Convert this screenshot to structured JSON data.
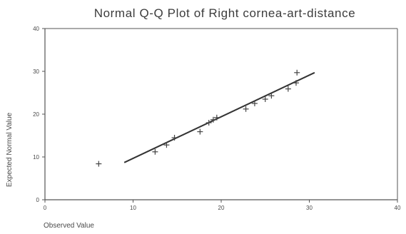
{
  "chart_data": {
    "type": "scatter",
    "title": "Normal Q-Q Plot of Right cornea-art-distance",
    "xlabel": "Observed Value",
    "ylabel": "Expected Normal Value",
    "xlim": [
      0,
      40
    ],
    "ylim": [
      0,
      40
    ],
    "xticks": [
      0,
      10,
      20,
      30,
      40
    ],
    "yticks": [
      0,
      10,
      20,
      30,
      40
    ],
    "grid": false,
    "points": {
      "marker": "+",
      "x": [
        6.1,
        12.5,
        13.8,
        14.7,
        17.6,
        18.6,
        19.1,
        19.5,
        22.8,
        23.8,
        25.0,
        25.7,
        27.6,
        28.5,
        28.6
      ],
      "y": [
        8.4,
        11.2,
        12.8,
        14.5,
        15.9,
        18.0,
        18.7,
        19.2,
        21.2,
        22.5,
        23.5,
        24.3,
        25.9,
        27.3,
        29.7
      ]
    },
    "reference_line": {
      "x": [
        9.0,
        30.6
      ],
      "y": [
        8.7,
        29.7
      ]
    },
    "colors": {
      "axis": "#555555",
      "line": "#333333",
      "points": "#444444",
      "text": "#3c3c3c"
    }
  }
}
